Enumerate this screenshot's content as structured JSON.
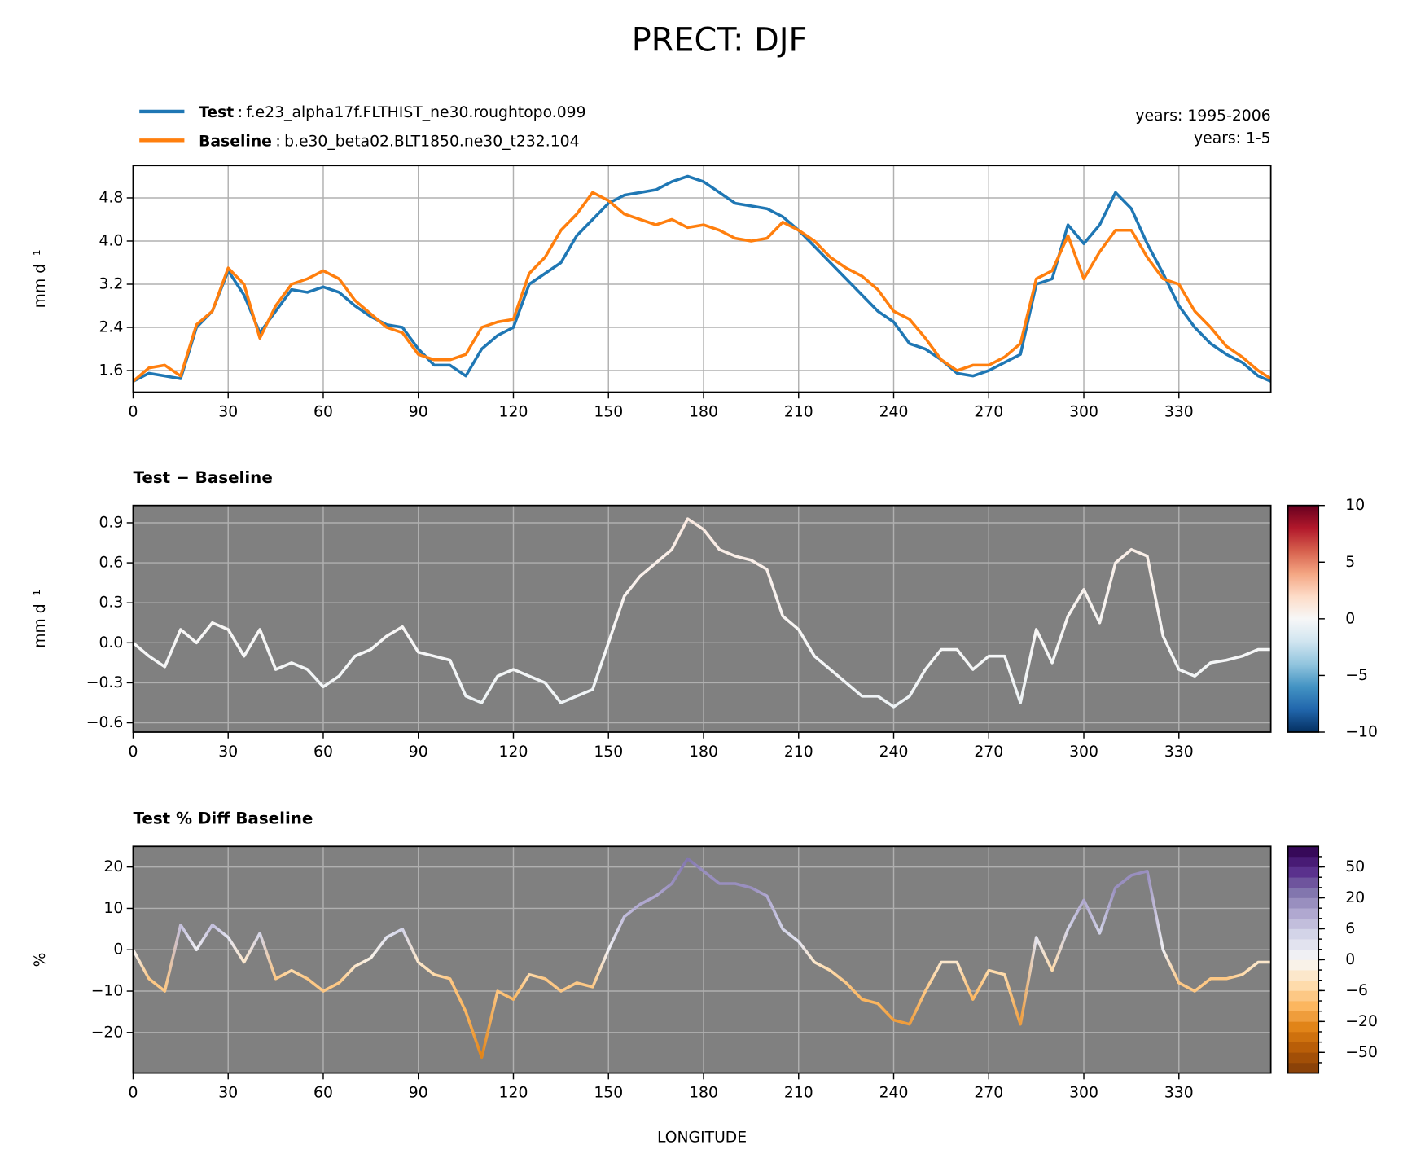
{
  "title": "PRECT: DJF",
  "chart_data": [
    {
      "type": "line",
      "ylabel": "mm d⁻¹",
      "x": [
        0,
        5,
        10,
        15,
        20,
        25,
        30,
        35,
        40,
        45,
        50,
        55,
        60,
        65,
        70,
        75,
        80,
        85,
        90,
        95,
        100,
        105,
        110,
        115,
        120,
        125,
        130,
        135,
        140,
        145,
        150,
        155,
        160,
        165,
        170,
        175,
        180,
        185,
        190,
        195,
        200,
        205,
        210,
        215,
        220,
        225,
        230,
        235,
        240,
        245,
        250,
        255,
        260,
        265,
        270,
        275,
        280,
        285,
        290,
        295,
        300,
        305,
        310,
        315,
        320,
        325,
        330,
        335,
        340,
        345,
        350,
        355,
        359
      ],
      "series": [
        {
          "name": "Test",
          "case": "f.e23_alpha17f.FLTHIST_ne30.roughtopo.099",
          "years": "years: 1995-2006",
          "color": "#1f77b4",
          "values": [
            1.4,
            1.55,
            1.5,
            1.45,
            2.4,
            2.7,
            3.45,
            3.0,
            2.3,
            2.7,
            3.1,
            3.05,
            3.15,
            3.05,
            2.8,
            2.6,
            2.45,
            2.4,
            2.0,
            1.7,
            1.7,
            1.5,
            2.0,
            2.25,
            2.4,
            3.2,
            3.4,
            3.6,
            4.1,
            4.4,
            4.7,
            4.85,
            4.9,
            4.95,
            5.1,
            5.2,
            5.1,
            4.9,
            4.7,
            4.65,
            4.6,
            4.45,
            4.2,
            3.9,
            3.6,
            3.3,
            3.0,
            2.7,
            2.5,
            2.1,
            2.0,
            1.8,
            1.55,
            1.5,
            1.6,
            1.75,
            1.9,
            3.2,
            3.3,
            4.3,
            3.95,
            4.3,
            4.9,
            4.6,
            3.95,
            3.4,
            2.8,
            2.4,
            2.1,
            1.9,
            1.75,
            1.5,
            1.4
          ]
        },
        {
          "name": "Baseline",
          "case": "b.e30_beta02.BLT1850.ne30_t232.104",
          "years": "years: 1-5",
          "color": "#ff7f0e",
          "values": [
            1.4,
            1.65,
            1.7,
            1.5,
            2.45,
            2.7,
            3.5,
            3.2,
            2.2,
            2.8,
            3.2,
            3.3,
            3.45,
            3.3,
            2.9,
            2.65,
            2.4,
            2.3,
            1.9,
            1.8,
            1.8,
            1.9,
            2.4,
            2.5,
            2.55,
            3.4,
            3.7,
            4.2,
            4.5,
            4.9,
            4.75,
            4.5,
            4.4,
            4.3,
            4.4,
            4.25,
            4.3,
            4.2,
            4.05,
            4.0,
            4.05,
            4.35,
            4.2,
            4.0,
            3.7,
            3.5,
            3.35,
            3.1,
            2.7,
            2.55,
            2.2,
            1.8,
            1.6,
            1.7,
            1.7,
            1.85,
            2.1,
            3.3,
            3.45,
            4.1,
            3.3,
            3.8,
            4.2,
            4.2,
            3.7,
            3.3,
            3.2,
            2.7,
            2.4,
            2.05,
            1.85,
            1.6,
            1.45
          ]
        }
      ],
      "xlim": [
        0,
        359
      ],
      "ylim": [
        1.2,
        5.4
      ],
      "xticks": [
        0,
        30,
        60,
        90,
        120,
        150,
        180,
        210,
        240,
        270,
        300,
        330
      ],
      "yticks": [
        1.6,
        2.4,
        3.2,
        {
          "value": 4,
          "label": "4.0"
        },
        4.8
      ],
      "grid": true,
      "background": "#ffffff"
    },
    {
      "type": "line",
      "title": "Test − Baseline",
      "ylabel": "mm d⁻¹",
      "x": [
        0,
        5,
        10,
        15,
        20,
        25,
        30,
        35,
        40,
        45,
        50,
        55,
        60,
        65,
        70,
        75,
        80,
        85,
        90,
        95,
        100,
        105,
        110,
        115,
        120,
        125,
        130,
        135,
        140,
        145,
        150,
        155,
        160,
        165,
        170,
        175,
        180,
        185,
        190,
        195,
        200,
        205,
        210,
        215,
        220,
        225,
        230,
        235,
        240,
        245,
        250,
        255,
        260,
        265,
        270,
        275,
        280,
        285,
        290,
        295,
        300,
        305,
        310,
        315,
        320,
        325,
        330,
        335,
        340,
        345,
        350,
        355,
        359
      ],
      "values": [
        0,
        -0.1,
        -0.18,
        0.1,
        0,
        0.15,
        0.1,
        -0.1,
        0.1,
        -0.2,
        -0.15,
        -0.2,
        -0.33,
        -0.25,
        -0.1,
        -0.05,
        0.05,
        0.12,
        -0.07,
        -0.1,
        -0.13,
        -0.4,
        -0.45,
        -0.25,
        -0.2,
        -0.25,
        -0.3,
        -0.45,
        -0.4,
        -0.35,
        0,
        0.35,
        0.5,
        0.6,
        0.7,
        0.93,
        0.85,
        0.7,
        0.65,
        0.62,
        0.55,
        0.2,
        0.1,
        -0.1,
        -0.2,
        -0.3,
        -0.4,
        -0.4,
        -0.48,
        -0.4,
        -0.2,
        -0.05,
        -0.05,
        -0.2,
        -0.1,
        -0.1,
        -0.45,
        0.1,
        -0.15,
        0.2,
        0.4,
        0.15,
        0.6,
        0.7,
        0.65,
        0.05,
        -0.2,
        -0.25,
        -0.15,
        -0.13,
        -0.1,
        -0.05,
        -0.05
      ],
      "xlim": [
        0,
        359
      ],
      "ylim": [
        -0.67,
        1.03
      ],
      "xticks": [
        0,
        30,
        60,
        90,
        120,
        150,
        180,
        210,
        240,
        270,
        300,
        330
      ],
      "yticks": [
        {
          "value": -0.6,
          "label": "−0.6"
        },
        {
          "value": -0.3,
          "label": "−0.3"
        },
        {
          "value": 0,
          "label": "0.0"
        },
        0.3,
        0.6,
        0.9
      ],
      "grid": true,
      "background": "#808080",
      "colorbar": {
        "lim": [
          -10,
          10
        ],
        "ticks": [
          {
            "value": -10,
            "label": "−10"
          },
          {
            "value": -5,
            "label": "−5"
          },
          0,
          5,
          10
        ],
        "colormap": [
          "#053061",
          "#2166ac",
          "#4393c3",
          "#92c5de",
          "#d1e5f0",
          "#f7f7f7",
          "#fddbc7",
          "#f4a582",
          "#d6604d",
          "#b2182b",
          "#67001f"
        ]
      }
    },
    {
      "type": "line",
      "title": "Test % Diff Baseline",
      "ylabel": "%",
      "xlabel": "LONGITUDE",
      "x": [
        0,
        5,
        10,
        15,
        20,
        25,
        30,
        35,
        40,
        45,
        50,
        55,
        60,
        65,
        70,
        75,
        80,
        85,
        90,
        95,
        100,
        105,
        110,
        115,
        120,
        125,
        130,
        135,
        140,
        145,
        150,
        155,
        160,
        165,
        170,
        175,
        180,
        185,
        190,
        195,
        200,
        205,
        210,
        215,
        220,
        225,
        230,
        235,
        240,
        245,
        250,
        255,
        260,
        265,
        270,
        275,
        280,
        285,
        290,
        295,
        300,
        305,
        310,
        315,
        320,
        325,
        330,
        335,
        340,
        345,
        350,
        355,
        359
      ],
      "values": [
        0,
        -7,
        -10,
        6,
        0,
        6,
        3,
        -3,
        4,
        -7,
        -5,
        -7,
        -10,
        -8,
        -4,
        -2,
        3,
        5,
        -3,
        -6,
        -7,
        -15,
        -26,
        -10,
        -12,
        -6,
        -7,
        -10,
        -8,
        -9,
        0,
        8,
        11,
        13,
        16,
        22,
        19,
        16,
        16,
        15,
        13,
        5,
        2,
        -3,
        -5,
        -8,
        -12,
        -13,
        -17,
        -18,
        -10,
        -3,
        -3,
        -12,
        -5,
        -6,
        -18,
        3,
        -5,
        5,
        12,
        4,
        15,
        18,
        19,
        0,
        -8,
        -10,
        -7,
        -7,
        -6,
        -3,
        -3
      ],
      "xlim": [
        0,
        359
      ],
      "ylim": [
        -29.8,
        25
      ],
      "xticks": [
        0,
        30,
        60,
        90,
        120,
        150,
        180,
        210,
        240,
        270,
        300,
        330
      ],
      "yticks": [
        {
          "value": -20,
          "label": "−20"
        },
        {
          "value": -10,
          "label": "−10"
        },
        0,
        10,
        20
      ],
      "grid": true,
      "background": "#808080",
      "colorbar": {
        "levels": [
          -100,
          -70,
          -50,
          -40,
          -30,
          -20,
          -15,
          -10,
          -6,
          -4,
          -2,
          0,
          2,
          4,
          6,
          10,
          15,
          20,
          30,
          40,
          50,
          70,
          100
        ],
        "ticks": [
          {
            "value": -50,
            "label": "−50"
          },
          {
            "value": -20,
            "label": "−20"
          },
          {
            "value": -6,
            "label": "−6"
          },
          0,
          6,
          20,
          50
        ],
        "colormap": [
          "#7f3b08",
          "#b35806",
          "#e08214",
          "#fdb863",
          "#fee0b6",
          "#f7f7f7",
          "#d8daeb",
          "#b2abd2",
          "#8073ac",
          "#542788",
          "#2d004b"
        ]
      }
    }
  ]
}
